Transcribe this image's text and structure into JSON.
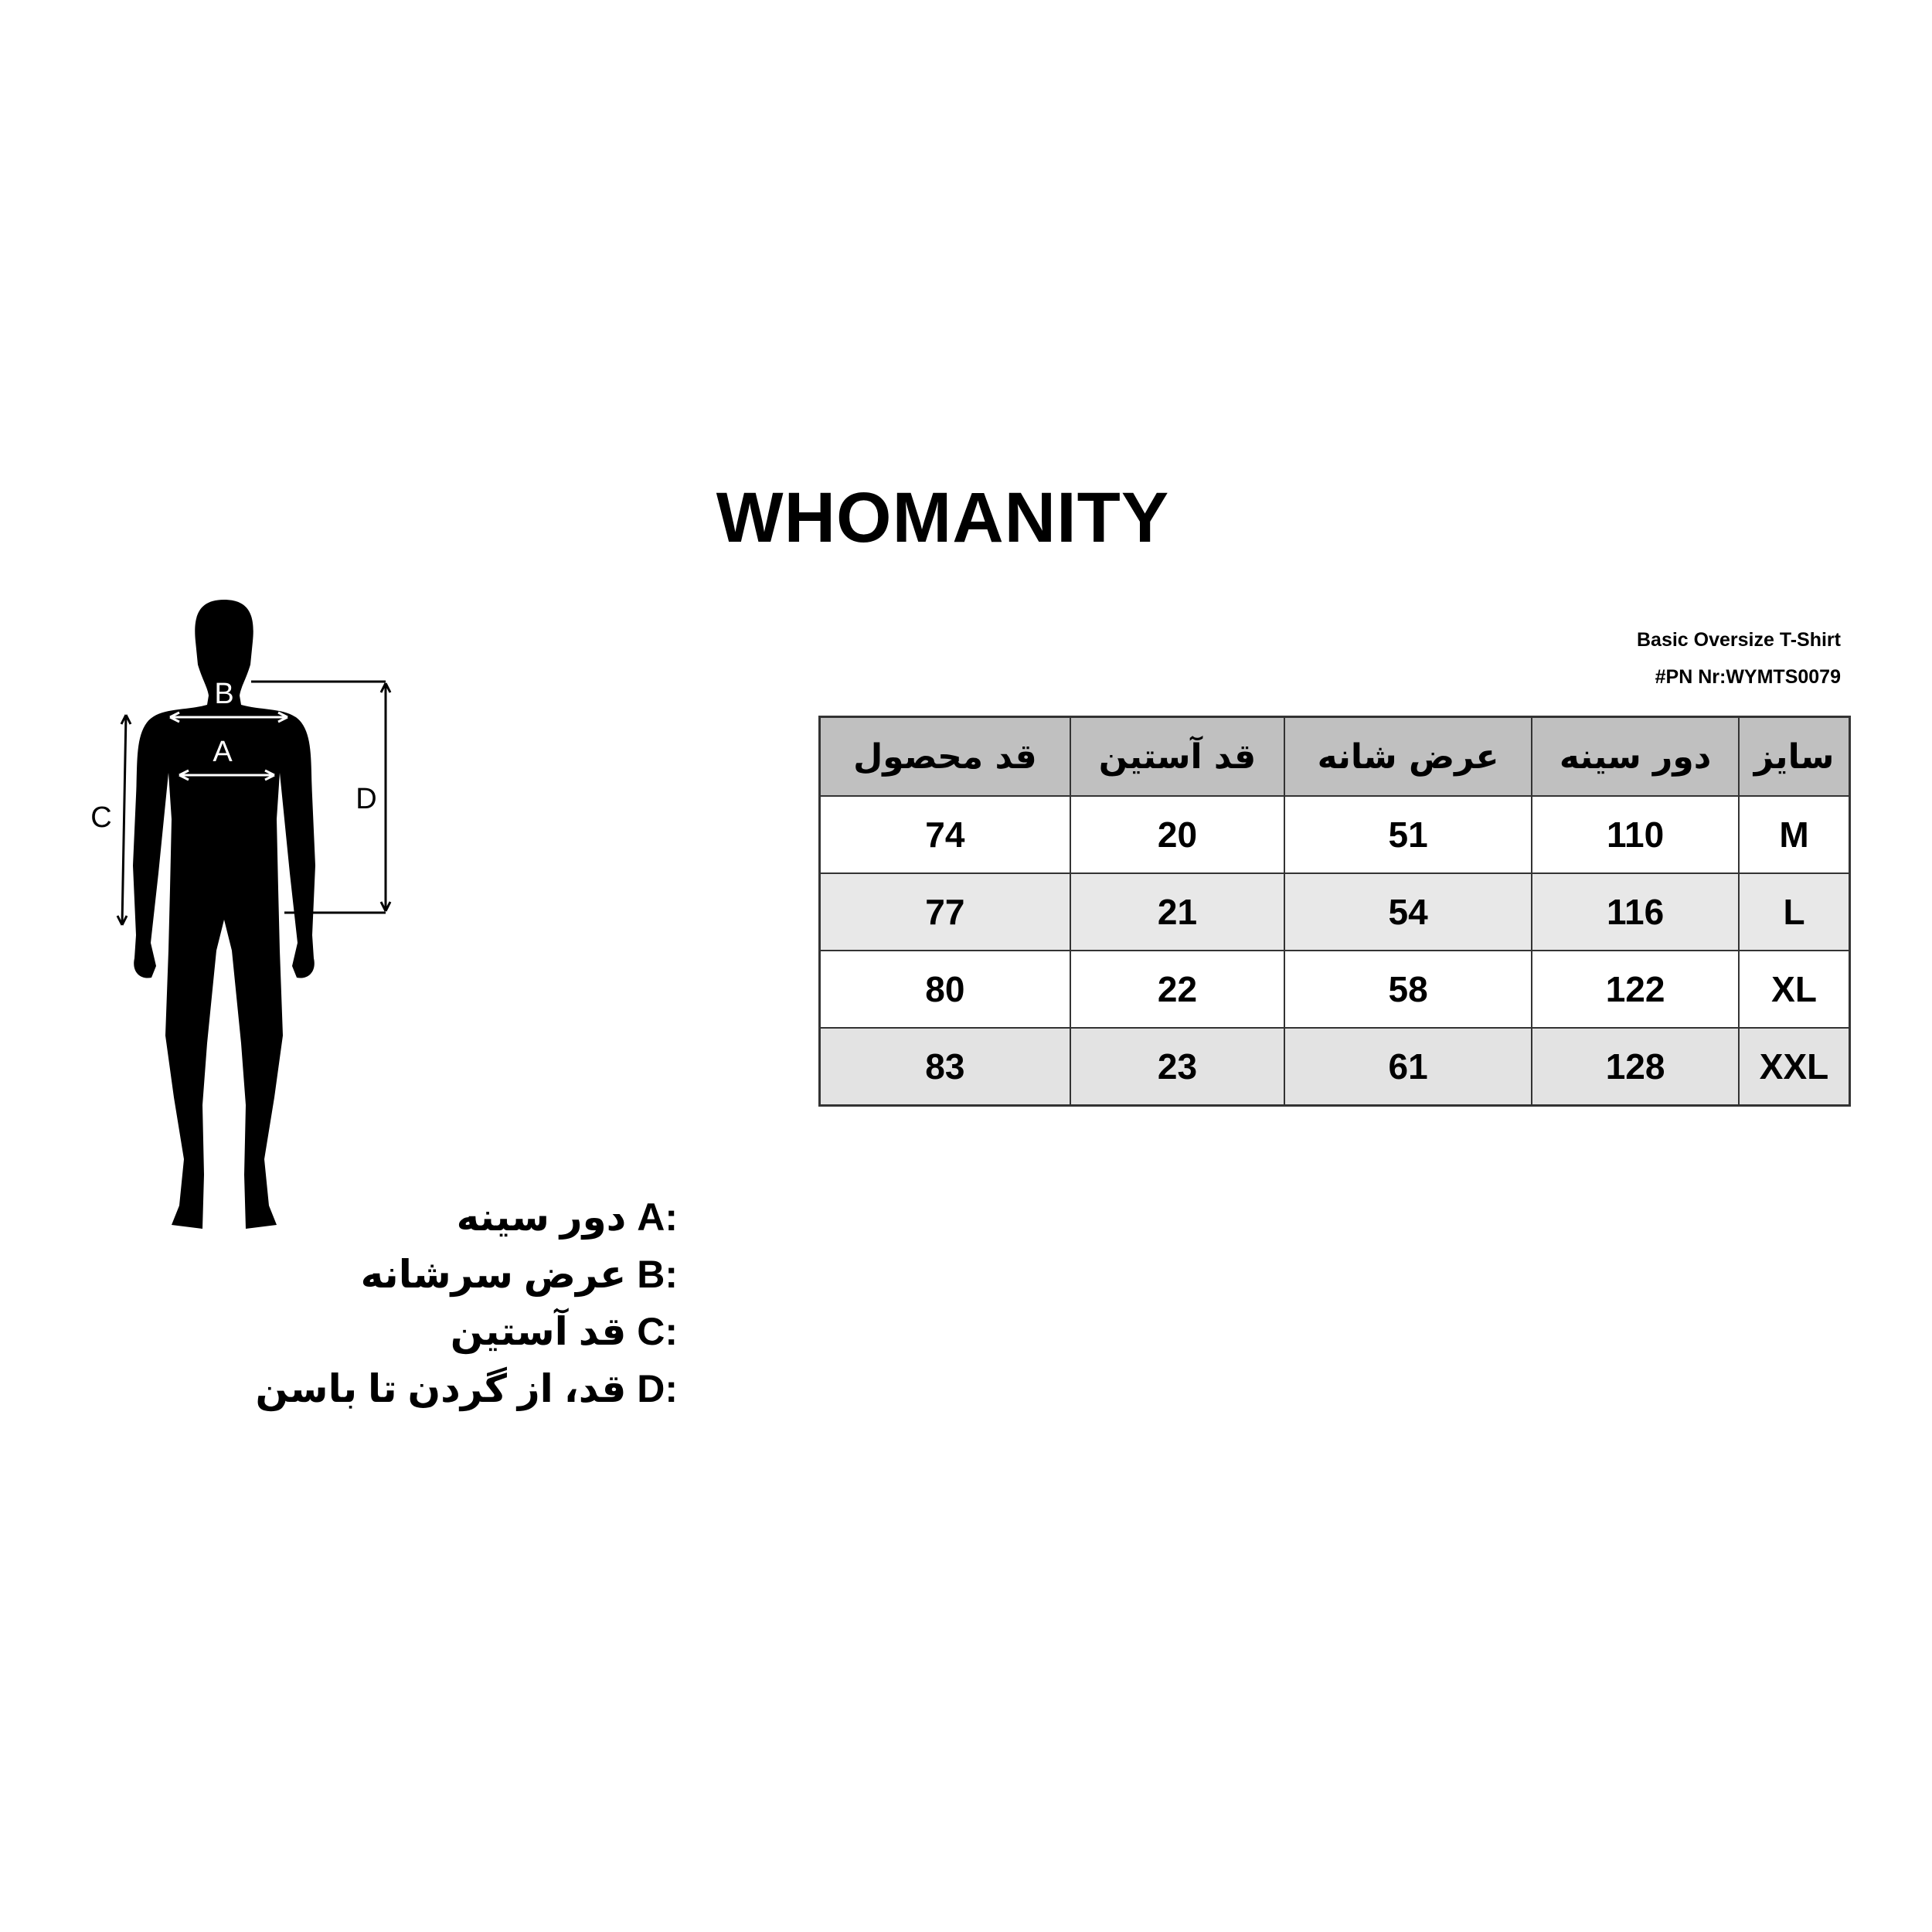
{
  "brand": "WHOMANITY",
  "product_name": "Basic Oversize T-Shirt",
  "product_code": "#PN Nr:WYMTS0079",
  "table": {
    "headers_rtl": [
      "سایز",
      "دور سینه",
      "عرض شانه",
      "قد آستین",
      "قد محصول"
    ],
    "rows": [
      {
        "size": "M",
        "chest": "110",
        "shoulder": "51",
        "sleeve": "20",
        "length": "74"
      },
      {
        "size": "L",
        "chest": "116",
        "shoulder": "54",
        "sleeve": "21",
        "length": "77"
      },
      {
        "size": "XL",
        "chest": "122",
        "shoulder": "58",
        "sleeve": "22",
        "length": "80"
      },
      {
        "size": "XXL",
        "chest": "128",
        "shoulder": "61",
        "sleeve": "23",
        "length": "83"
      }
    ],
    "header_bg": "#c0c0c0"
  },
  "figure_labels": {
    "A": "A",
    "B": "B",
    "C": "C",
    "D": "D"
  },
  "legend": [
    {
      "key": "A:",
      "text": "دور سینه"
    },
    {
      "key": "B:",
      "text": "عرض سرشانه"
    },
    {
      "key": "C:",
      "text": "قد آستین"
    },
    {
      "key": "D:",
      "text": "قد، از گردن تا باسن"
    }
  ]
}
